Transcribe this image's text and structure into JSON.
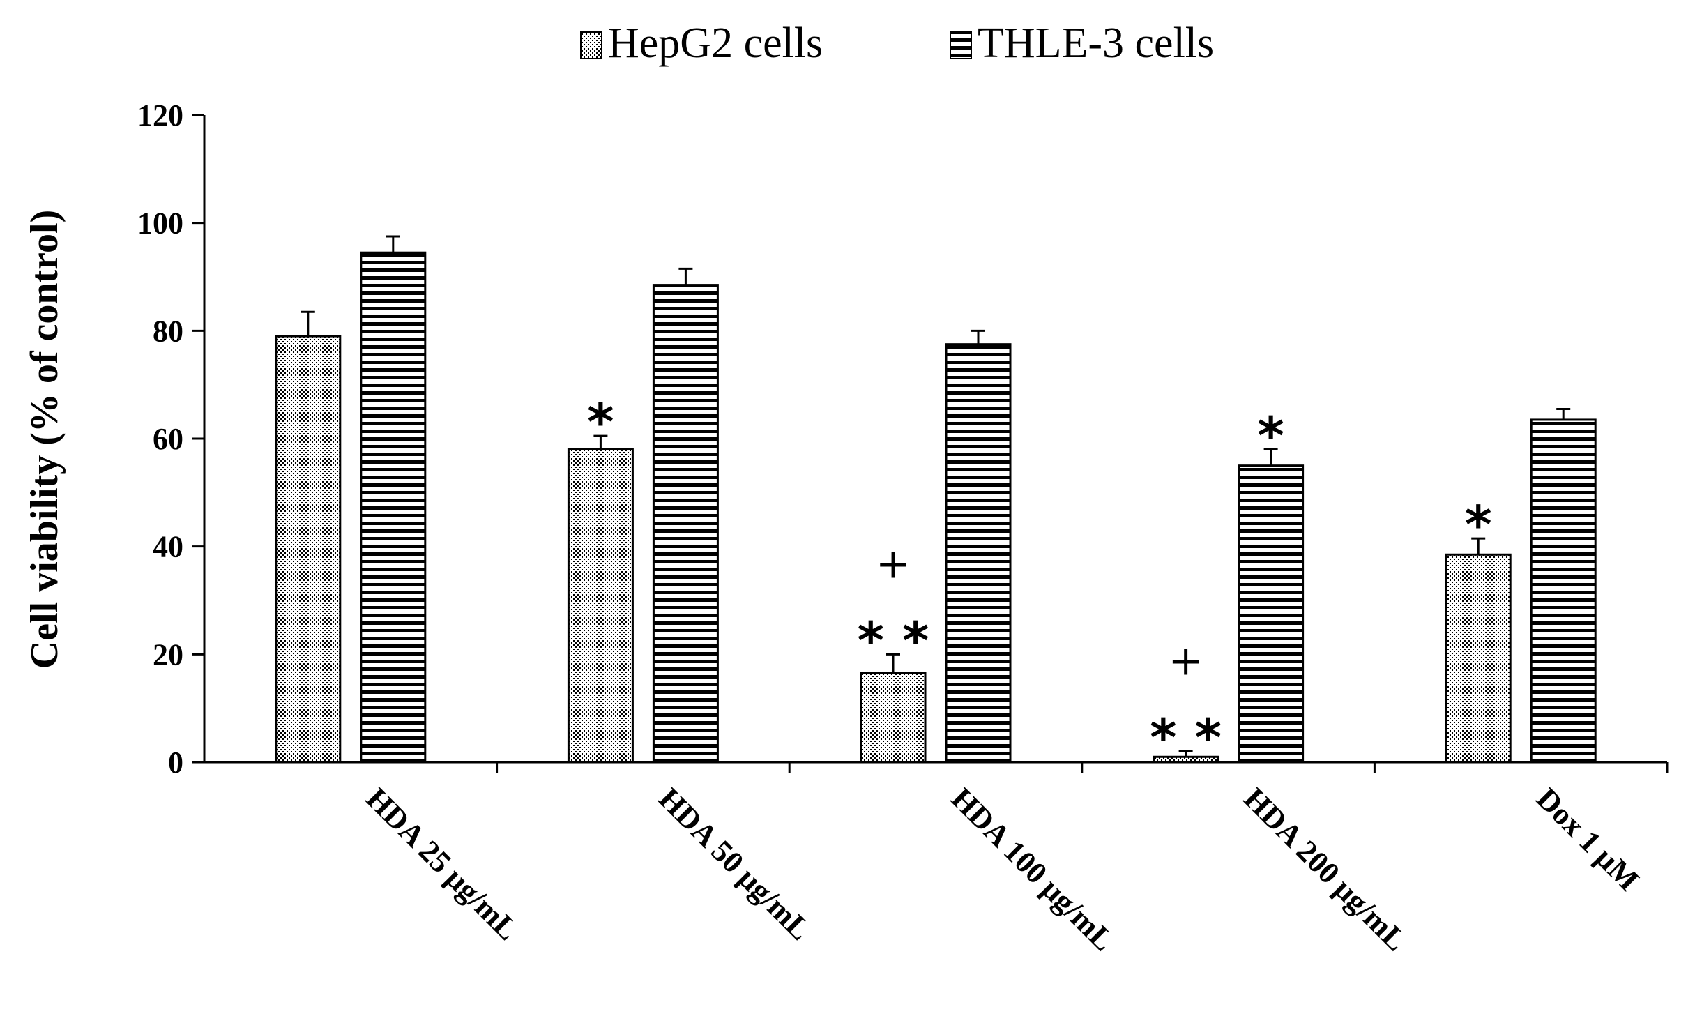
{
  "chart_data": {
    "type": "bar",
    "title": "",
    "xlabel": "",
    "ylabel": "Cell viability (% of control)",
    "ylim": [
      0,
      120
    ],
    "yticks": [
      0,
      20,
      40,
      60,
      80,
      100,
      120
    ],
    "ytick_labels": [
      "0",
      "20",
      "40",
      "60",
      "80",
      "100",
      "120"
    ],
    "categories": [
      "HDA 25 μg/mL",
      "HDA 50 μg/mL",
      "HDA 100 μg/mL",
      "HDA 200 μg/mL",
      "Dox 1 μM"
    ],
    "series": [
      {
        "name": "HepG2 cells",
        "pattern": "dots",
        "values": [
          79,
          58,
          16.5,
          1,
          38.5
        ],
        "errors": [
          4.5,
          2.5,
          3.5,
          1,
          3
        ],
        "annotations": [
          [],
          [
            "*"
          ],
          [
            "+",
            "* *"
          ],
          [
            "+",
            "* *"
          ],
          [
            "*"
          ]
        ]
      },
      {
        "name": "THLE-3 cells",
        "pattern": "horizontal-stripes",
        "values": [
          94.5,
          88.5,
          77.5,
          55,
          63.5
        ],
        "errors": [
          3,
          3,
          2.5,
          3,
          2
        ],
        "annotations": [
          [],
          [],
          [],
          [
            "*"
          ],
          []
        ]
      }
    ],
    "legend_position": "top-center",
    "grid": false
  },
  "colors": {
    "bar_outline": "#000000",
    "axis": "#000000",
    "background": "#ffffff"
  }
}
